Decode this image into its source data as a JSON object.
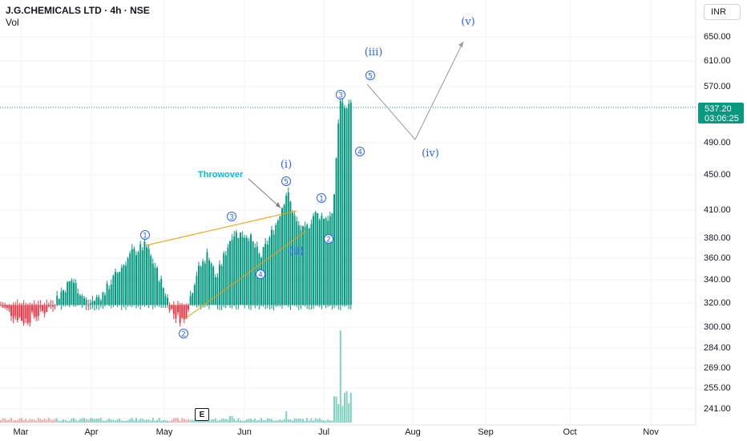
{
  "header": {
    "title": "J.G.CHEMICALS LTD · 4h · NSE",
    "indicator": "Vol",
    "currency": "INR"
  },
  "price_axis": {
    "ticks": [
      "650.00",
      "610.00",
      "570.00",
      "490.00",
      "450.00",
      "410.00",
      "380.00",
      "360.00",
      "340.00",
      "320.00",
      "300.00",
      "284.00",
      "269.00",
      "255.00",
      "241.00"
    ],
    "current_price": "537.20",
    "countdown": "03:06:25",
    "badge_color": "#089981"
  },
  "time_axis": {
    "ticks": [
      "Mar",
      "Apr",
      "May",
      "Jun",
      "Jul",
      "Aug",
      "Sep",
      "Oct",
      "Nov"
    ]
  },
  "annotations": {
    "throwover": "Throwover",
    "wave_labels": [
      "(i)",
      "(ii)",
      "(iii)",
      "(iv)",
      "(v)"
    ],
    "sub_labels": [
      "①",
      "②",
      "③",
      "④",
      "⑤"
    ],
    "earnings_badge": "E"
  },
  "colors": {
    "up": "#089981",
    "down": "#f23645",
    "wave": "#2962ff",
    "wedge": "#ff9800",
    "throwover": "#00bcd4",
    "projection": "#9598a1"
  },
  "chart_data": {
    "type": "candlestick",
    "symbol": "J.G.CHEMICALS LTD",
    "interval": "4h",
    "exchange": "NSE",
    "ylim": [
      235,
      670
    ],
    "y_scale": "log",
    "last_price": 537.2,
    "key_points": [
      {
        "label": "① (wedge)",
        "month": "Apr",
        "price": 372
      },
      {
        "label": "② (wedge)",
        "month": "May",
        "price": 303
      },
      {
        "label": "③ (wedge)",
        "month": "Jun",
        "price": 392
      },
      {
        "label": "④ (wedge)",
        "month": "Jun",
        "price": 356
      },
      {
        "label": "⑤ / (i)",
        "month": "Jun",
        "price": 430
      },
      {
        "label": "(ii)",
        "month": "Jul",
        "price": 385
      },
      {
        "label": "(iii) ⑤",
        "month": "Jul",
        "price": 580
      },
      {
        "label": "(iv)",
        "month": "Aug",
        "price": 495
      },
      {
        "label": "(v)",
        "month": "Sep",
        "price": 650
      }
    ]
  }
}
